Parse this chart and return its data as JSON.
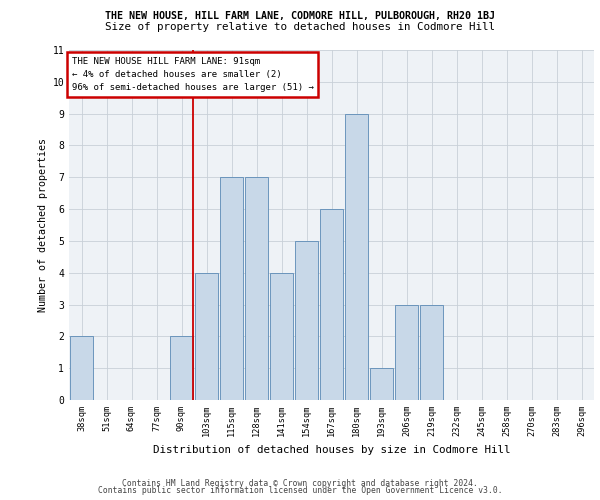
{
  "title_line1": "THE NEW HOUSE, HILL FARM LANE, CODMORE HILL, PULBOROUGH, RH20 1BJ",
  "title_line2": "Size of property relative to detached houses in Codmore Hill",
  "xlabel": "Distribution of detached houses by size in Codmore Hill",
  "ylabel": "Number of detached properties",
  "categories": [
    "38sqm",
    "51sqm",
    "64sqm",
    "77sqm",
    "90sqm",
    "103sqm",
    "115sqm",
    "128sqm",
    "141sqm",
    "154sqm",
    "167sqm",
    "180sqm",
    "193sqm",
    "206sqm",
    "219sqm",
    "232sqm",
    "245sqm",
    "258sqm",
    "270sqm",
    "283sqm",
    "296sqm"
  ],
  "values": [
    2,
    0,
    0,
    0,
    2,
    4,
    7,
    7,
    4,
    5,
    6,
    9,
    1,
    3,
    3,
    0,
    0,
    0,
    0,
    0,
    0
  ],
  "bar_color": "#c8d8e8",
  "bar_edge_color": "#5b8ab5",
  "highlight_index": 4,
  "highlight_color_line": "#cc0000",
  "ylim": [
    0,
    11
  ],
  "yticks": [
    0,
    1,
    2,
    3,
    4,
    5,
    6,
    7,
    8,
    9,
    10,
    11
  ],
  "annotation_text": "THE NEW HOUSE HILL FARM LANE: 91sqm\n← 4% of detached houses are smaller (2)\n96% of semi-detached houses are larger (51) →",
  "annotation_box_color": "#ffffff",
  "annotation_box_edge": "#cc0000",
  "footer_line1": "Contains HM Land Registry data © Crown copyright and database right 2024.",
  "footer_line2": "Contains public sector information licensed under the Open Government Licence v3.0.",
  "bg_color": "#eef2f6",
  "grid_color": "#c8d0d8"
}
